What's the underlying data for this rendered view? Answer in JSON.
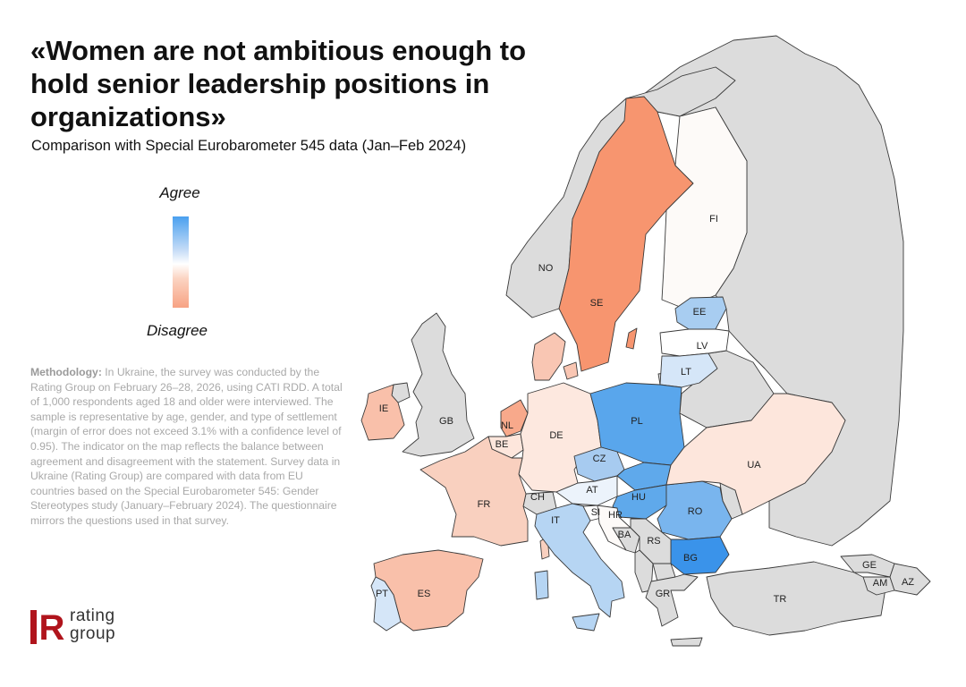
{
  "title": "«Women are not ambitious enough to hold senior leadership positions in organizations»",
  "subtitle": "Comparison with Special Eurobarometer 545 data (Jan–Feb 2024)",
  "legend": {
    "agree": "Agree",
    "disagree": "Disagree",
    "agree_color": "#4aa0ef",
    "neutral_color": "#ffffff",
    "disagree_color": "#f7a283"
  },
  "methodology": {
    "label": "Methodology:",
    "text": "In Ukraine, the survey was conducted by the Rating Group on February 26–28, 2026, using CATI RDD. A total of 1,000 respondents aged 18 and older were interviewed. The sample is representative by age, gender, and type of settlement (margin of error does not exceed 3.1% with a confidence level of 0.95). The indicator on the map reflects the balance between agreement and disagreement with the statement. Survey data in Ukraine (Rating Group) are compared with data from EU countries based on the Special Eurobarometer 545: Gender Stereotypes study (January–February 2024). The questionnaire mirrors the questions used in that survey."
  },
  "logo": {
    "mark": "R",
    "line1": "rating",
    "line2": "group",
    "brand_color": "#b0141c"
  },
  "colors": {
    "no_data": "#dcdcdc",
    "border": "#3a3a3a"
  },
  "countries": {
    "NO": {
      "label": "NO",
      "fill": "#dcdcdc"
    },
    "SE": {
      "label": "SE",
      "fill": "#f7956f"
    },
    "FI": {
      "label": "FI",
      "fill": "#fdfaf8"
    },
    "EE": {
      "label": "EE",
      "fill": "#a8cdf1"
    },
    "LV": {
      "label": "LV",
      "fill": "#ffffff"
    },
    "LT": {
      "label": "LT",
      "fill": "#d5e6f8"
    },
    "IE": {
      "label": "IE",
      "fill": "#f9c0aa"
    },
    "GB": {
      "label": "GB",
      "fill": "#dcdcdc"
    },
    "NL": {
      "label": "NL",
      "fill": "#f8a98b"
    },
    "BE": {
      "label": "BE",
      "fill": "#fde6dc"
    },
    "DE": {
      "label": "DE",
      "fill": "#fde8df"
    },
    "DK": {
      "label": "",
      "fill": "#f9c6b3"
    },
    "PL": {
      "label": "PL",
      "fill": "#59a6ec"
    },
    "CZ": {
      "label": "CZ",
      "fill": "#a7cbf0"
    },
    "SK": {
      "label": "",
      "fill": "#5fa9eb"
    },
    "AT": {
      "label": "AT",
      "fill": "#ecf3fb"
    },
    "CH": {
      "label": "CH",
      "fill": "#dcdcdc"
    },
    "HU": {
      "label": "HU",
      "fill": "#5fa9eb"
    },
    "RO": {
      "label": "RO",
      "fill": "#79b5ee"
    },
    "BG": {
      "label": "BG",
      "fill": "#3a93ea"
    },
    "UA": {
      "label": "UA",
      "fill": "#fde6dc"
    },
    "FR": {
      "label": "FR",
      "fill": "#f9d0bf"
    },
    "IT": {
      "label": "IT",
      "fill": "#b6d5f3"
    },
    "SI": {
      "label": "SI",
      "fill": "#ffffff"
    },
    "HR": {
      "label": "HR",
      "fill": "#fdfaf8"
    },
    "BA": {
      "label": "BA",
      "fill": "#dcdcdc"
    },
    "RS": {
      "label": "RS",
      "fill": "#dcdcdc"
    },
    "ES": {
      "label": "ES",
      "fill": "#f9c0aa"
    },
    "PT": {
      "label": "PT",
      "fill": "#d5e6f8"
    },
    "GR": {
      "label": "GR",
      "fill": "#dcdcdc"
    },
    "TR": {
      "label": "TR",
      "fill": "#dcdcdc"
    },
    "GE": {
      "label": "GE",
      "fill": "#dcdcdc"
    },
    "AM": {
      "label": "AM",
      "fill": "#dcdcdc"
    },
    "AZ": {
      "label": "AZ",
      "fill": "#dcdcdc"
    }
  }
}
